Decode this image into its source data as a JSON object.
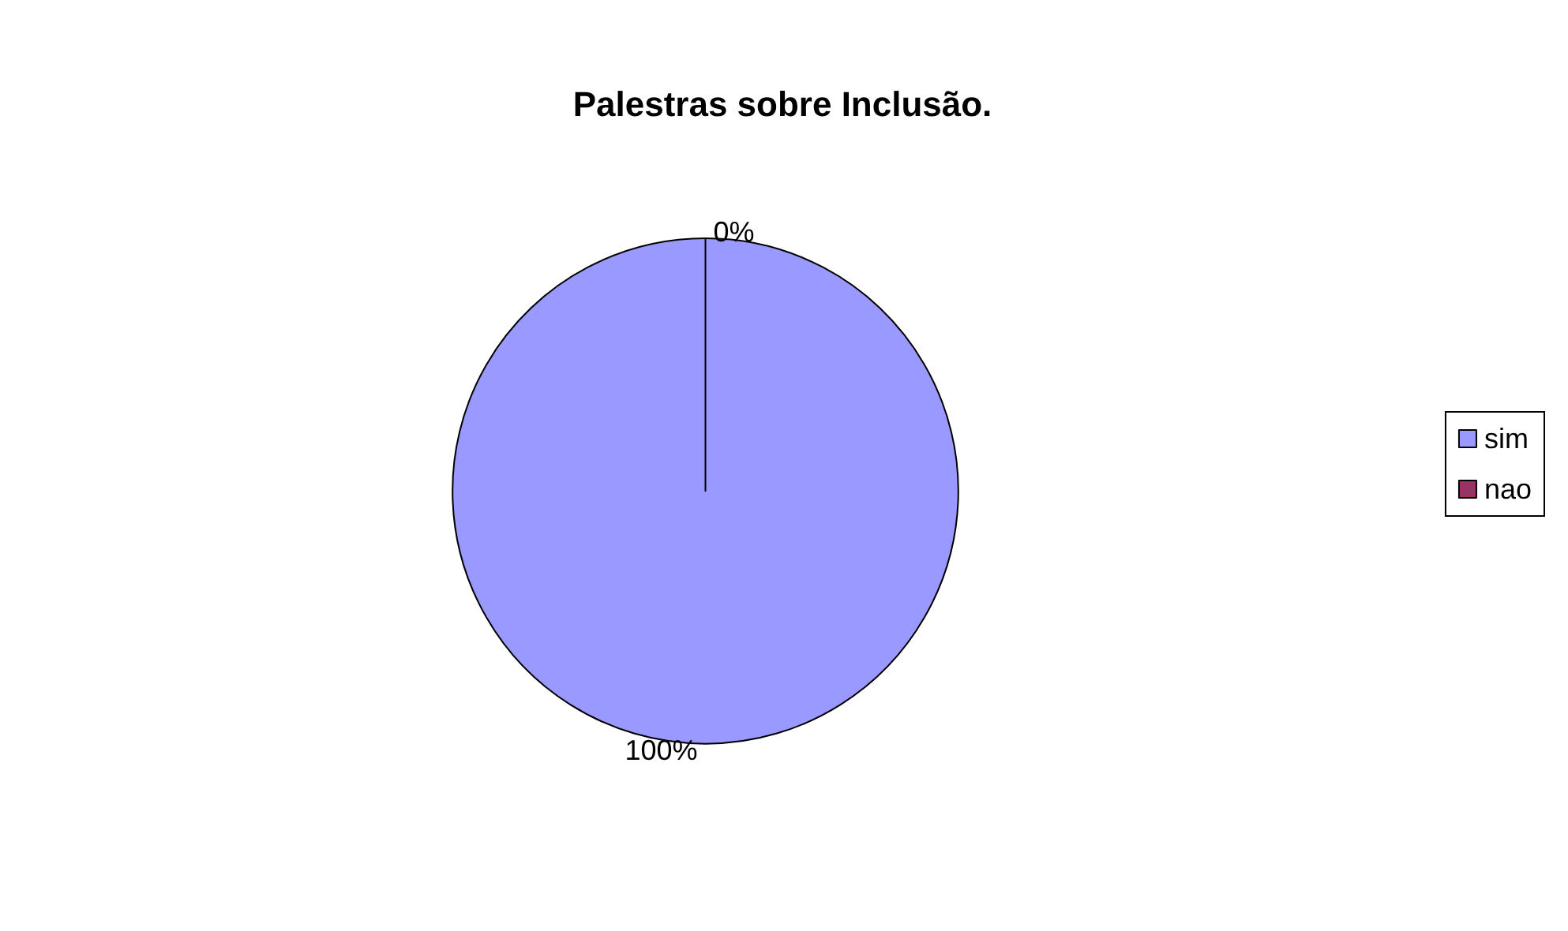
{
  "chart_data": {
    "type": "pie",
    "title": "Palestras sobre Inclusão.",
    "categories": [
      "sim",
      "nao"
    ],
    "values": [
      100,
      0
    ],
    "colors": [
      "#9999ff",
      "#993366"
    ],
    "value_labels": [
      "100%",
      "0%"
    ],
    "legend": "right"
  }
}
